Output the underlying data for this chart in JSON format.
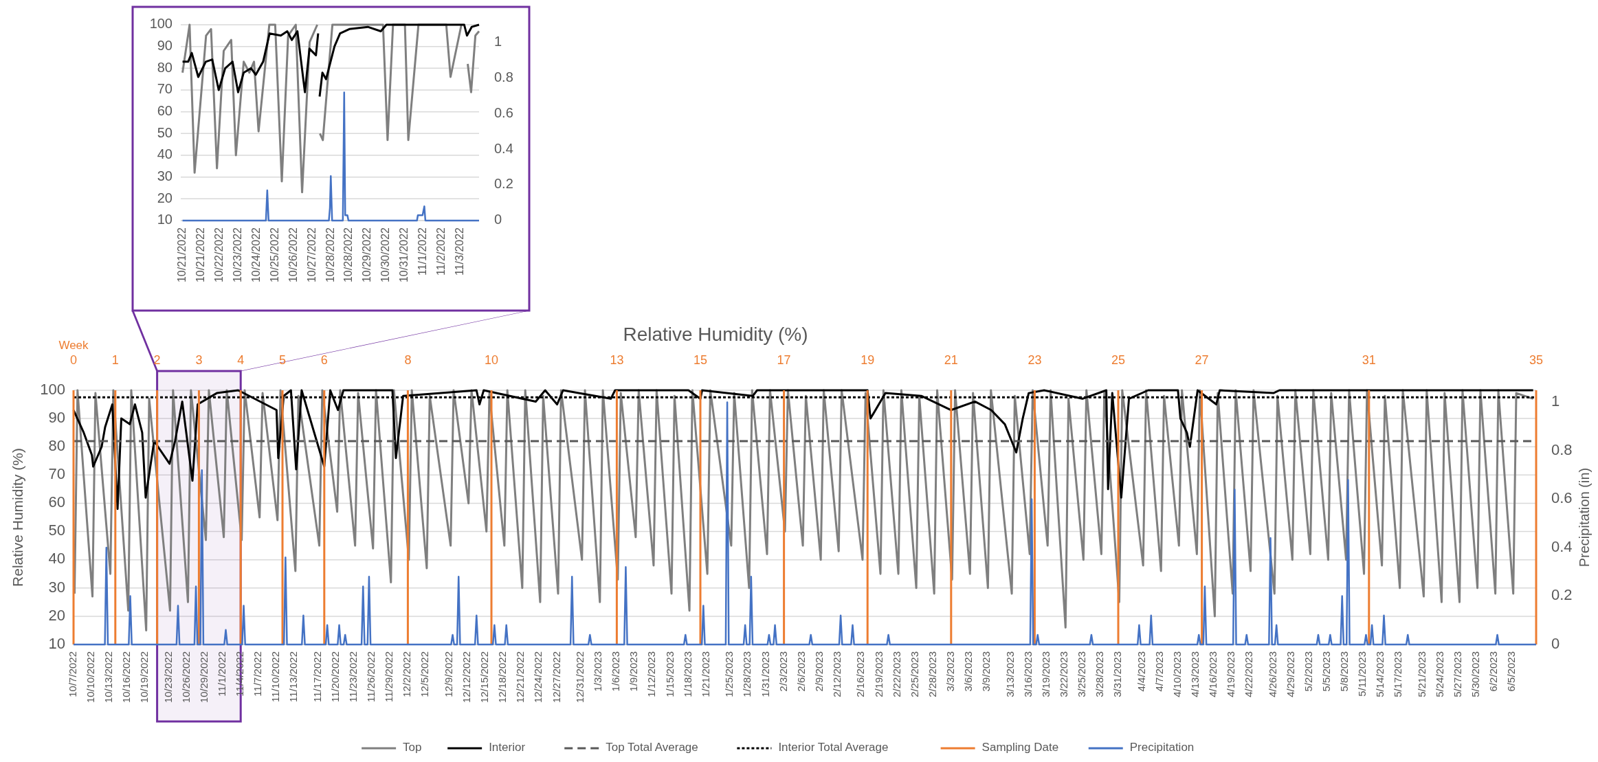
{
  "chart_data": [
    {
      "type": "line",
      "xlim": [
        "2022-10-20T22:00",
        "2022-11-04T00:00"
      ],
      "xticks": [
        {
          "value": "2022-10-21T00:00",
          "label": "10/21/2022"
        },
        {
          "value": "2022-10-21T21:00",
          "label": "10/21/2022"
        },
        {
          "value": "2022-10-22T18:00",
          "label": "10/22/2022"
        },
        {
          "value": "2022-10-23T15:00",
          "label": "10/23/2022"
        },
        {
          "value": "2022-10-24T12:00",
          "label": "10/24/2022"
        },
        {
          "value": "2022-10-25T09:00",
          "label": "10/25/2022"
        },
        {
          "value": "2022-10-26T06:00",
          "label": "10/26/2022"
        },
        {
          "value": "2022-10-27T03:00",
          "label": "10/27/2022"
        },
        {
          "value": "2022-10-28T00:00",
          "label": "10/28/2022"
        },
        {
          "value": "2022-10-28T21:00",
          "label": "10/28/2022"
        },
        {
          "value": "2022-10-29T18:00",
          "label": "10/29/2022"
        },
        {
          "value": "2022-10-30T15:00",
          "label": "10/30/2022"
        },
        {
          "value": "2022-10-31T12:00",
          "label": "10/31/2022"
        },
        {
          "value": "2022-11-01T09:00",
          "label": "11/1/2022"
        },
        {
          "value": "2022-11-02T06:00",
          "label": "11/2/2022"
        },
        {
          "value": "2022-11-03T03:00",
          "label": "11/3/2022"
        }
      ],
      "ylim": [
        10,
        100
      ],
      "yticks": [
        10,
        20,
        30,
        40,
        50,
        60,
        70,
        80,
        90,
        100
      ],
      "y2lim": [
        0,
        1.1
      ],
      "y2ticks": [
        0,
        0.2,
        0.4,
        0.6,
        0.8,
        1
      ],
      "grid": "y",
      "series": [
        {
          "color": "#7f7f7f",
          "x": [
            "2022-10-21T00:00",
            "2022-10-21T08:00",
            "2022-10-21T13:40",
            "2022-10-22T02:40",
            "2022-10-22T08:20",
            "2022-10-22T15:00",
            "2022-10-22T22:40",
            "2022-10-23T07:10",
            "2022-10-23T12:30",
            "2022-10-23T21:20",
            "2022-10-24T03:40",
            "2022-10-24T09:00",
            "2022-10-24T14:10",
            "2022-10-25T02:20",
            "2022-10-25T09:00",
            "2022-10-25T16:30",
            "2022-10-25T23:40",
            "2022-10-26T08:20",
            "2022-10-26T15:30",
            "2022-10-27T00:00",
            "2022-10-27T08:40",
            "2022-10-27T09:20",
            "2022-10-27T11:40",
            "2022-10-27T15:00",
            "2022-10-27T21:40",
            "2022-10-28T01:50",
            "2022-10-30T11:10",
            "2022-10-30T16:20",
            "2022-10-30T22:30",
            "2022-10-31T12:00",
            "2022-10-31T15:50",
            "2022-11-01T03:20",
            "2022-11-02T10:50",
            "2022-11-02T15:40",
            "2022-11-03T04:00",
            "2022-11-03T07:10",
            "2022-11-03T11:10",
            "2022-11-03T15:00",
            "2022-11-03T19:50",
            "2022-11-04T00:00"
          ],
          "values": [
            78,
            100,
            32,
            95,
            98,
            34,
            88,
            93,
            40,
            83,
            78,
            83,
            51,
            100,
            100,
            28,
            95,
            100,
            23,
            92,
            100,
            null,
            50,
            47,
            80,
            100,
            100,
            47,
            100,
            100,
            47,
            100,
            100,
            76,
            100,
            null,
            82,
            69,
            95,
            97
          ]
        },
        {
          "color": "#000000",
          "x": [
            "2022-10-21T00:00",
            "2022-10-21T06:20",
            "2022-10-21T10:30",
            "2022-10-21T17:50",
            "2022-10-22T02:20",
            "2022-10-22T09:40",
            "2022-10-22T17:00",
            "2022-10-23T00:20",
            "2022-10-23T08:40",
            "2022-10-23T15:00",
            "2022-10-23T21:20",
            "2022-10-24T05:40",
            "2022-10-24T11:00",
            "2022-10-24T19:20",
            "2022-10-25T02:40",
            "2022-10-25T15:20",
            "2022-10-25T22:40",
            "2022-10-26T03:50",
            "2022-10-26T10:10",
            "2022-10-26T18:40",
            "2022-10-26T23:50",
            "2022-10-27T07:10",
            "2022-10-27T09:40",
            "2022-10-27T10:30",
            "2022-10-27T11:20",
            "2022-10-27T14:30",
            "2022-10-27T18:40",
            "2022-10-28T04:10",
            "2022-10-28T10:30",
            "2022-10-28T21:00",
            "2022-10-29T18:00",
            "2022-10-30T08:40",
            "2022-10-30T15:00",
            "2022-11-03T07:10",
            "2022-11-03T10:20",
            "2022-11-03T15:40",
            "2022-11-04T00:00"
          ],
          "values": [
            83,
            83,
            87,
            76,
            83,
            84,
            70,
            80,
            83,
            69,
            78,
            80,
            77,
            83,
            96,
            95,
            97,
            93,
            97,
            69,
            89,
            86,
            96,
            null,
            67,
            78,
            75,
            90,
            96,
            98,
            99,
            97,
            100,
            100,
            95,
            99,
            100
          ]
        },
        {
          "color": "#4472c4",
          "axis": "y2",
          "x": [
            "2022-10-21T00:00",
            "2022-10-24T22:30",
            "2022-10-25T00:00",
            "2022-10-25T01:30",
            "2022-10-27T21:50",
            "2022-10-27T23:00",
            "2022-10-28T00:00",
            "2022-10-28T01:30",
            "2022-10-28T13:40",
            "2022-10-28T15:10",
            "2022-10-28T16:20",
            "2022-10-28T18:50",
            "2022-10-28T20:00",
            "2022-11-01T01:40",
            "2022-11-01T02:40",
            "2022-11-01T08:00",
            "2022-11-01T10:00",
            "2022-11-01T11:10",
            "2022-11-04T00:00"
          ],
          "values": [
            0,
            0,
            0.17,
            0,
            0,
            0.07,
            0.25,
            0,
            0,
            0.72,
            0.03,
            0.03,
            0,
            0,
            0.03,
            0.03,
            0.08,
            0,
            0
          ]
        }
      ]
    },
    {
      "type": "line",
      "title": "Relative Humidity (%)",
      "ylabel": "Relative Humidity (%)",
      "y2label": "Precipitation (in)",
      "x2label": "Week",
      "xlim": [
        "2022-10-07",
        "2023-06-09"
      ],
      "xticks": [
        {
          "value": "2022-10-07",
          "label": "10/7/2022"
        },
        {
          "value": "2022-10-10",
          "label": "10/10/2022"
        },
        {
          "value": "2022-10-13",
          "label": "10/13/2022"
        },
        {
          "value": "2022-10-16",
          "label": "10/16/2022"
        },
        {
          "value": "2022-10-19",
          "label": "10/19/2022"
        },
        {
          "value": "2022-10-23",
          "label": "10/23/2022"
        },
        {
          "value": "2022-10-26",
          "label": "10/26/2022"
        },
        {
          "value": "2022-10-29",
          "label": "10/29/2022"
        },
        {
          "value": "2022-11-01",
          "label": "11/1/2022"
        },
        {
          "value": "2022-11-04",
          "label": "11/4/2022"
        },
        {
          "value": "2022-11-07",
          "label": "11/7/2022"
        },
        {
          "value": "2022-11-10",
          "label": "11/10/2022"
        },
        {
          "value": "2022-11-13",
          "label": "11/13/2022"
        },
        {
          "value": "2022-11-17",
          "label": "11/17/2022"
        },
        {
          "value": "2022-11-20",
          "label": "11/20/2022"
        },
        {
          "value": "2022-11-23",
          "label": "11/23/2022"
        },
        {
          "value": "2022-11-26",
          "label": "11/26/2022"
        },
        {
          "value": "2022-11-29",
          "label": "11/29/2022"
        },
        {
          "value": "2022-12-02",
          "label": "12/2/2022"
        },
        {
          "value": "2022-12-05",
          "label": "12/5/2022"
        },
        {
          "value": "2022-12-09",
          "label": "12/9/2022"
        },
        {
          "value": "2022-12-12",
          "label": "12/12/2022"
        },
        {
          "value": "2022-12-15",
          "label": "12/15/2022"
        },
        {
          "value": "2022-12-18",
          "label": "12/18/2022"
        },
        {
          "value": "2022-12-21",
          "label": "12/21/2022"
        },
        {
          "value": "2022-12-24",
          "label": "12/24/2022"
        },
        {
          "value": "2022-12-27",
          "label": "12/27/2022"
        },
        {
          "value": "2022-12-31",
          "label": "12/31/2022"
        },
        {
          "value": "2023-01-03",
          "label": "1/3/2023"
        },
        {
          "value": "2023-01-06",
          "label": "1/6/2023"
        },
        {
          "value": "2023-01-09",
          "label": "1/9/2023"
        },
        {
          "value": "2023-01-12",
          "label": "1/12/2023"
        },
        {
          "value": "2023-01-15",
          "label": "1/15/2023"
        },
        {
          "value": "2023-01-18",
          "label": "1/18/2023"
        },
        {
          "value": "2023-01-21",
          "label": "1/21/2023"
        },
        {
          "value": "2023-01-25",
          "label": "1/25/2023"
        },
        {
          "value": "2023-01-28",
          "label": "1/28/2023"
        },
        {
          "value": "2023-01-31",
          "label": "1/31/2023"
        },
        {
          "value": "2023-02-03",
          "label": "2/3/2023"
        },
        {
          "value": "2023-02-06",
          "label": "2/6/2023"
        },
        {
          "value": "2023-02-09",
          "label": "2/9/2023"
        },
        {
          "value": "2023-02-12",
          "label": "2/12/2023"
        },
        {
          "value": "2023-02-16",
          "label": "2/16/2023"
        },
        {
          "value": "2023-02-19",
          "label": "2/19/2023"
        },
        {
          "value": "2023-02-22",
          "label": "2/22/2023"
        },
        {
          "value": "2023-02-25",
          "label": "2/25/2023"
        },
        {
          "value": "2023-02-28",
          "label": "2/28/2023"
        },
        {
          "value": "2023-03-03",
          "label": "3/3/2023"
        },
        {
          "value": "2023-03-06",
          "label": "3/6/2023"
        },
        {
          "value": "2023-03-09",
          "label": "3/9/2023"
        },
        {
          "value": "2023-03-13",
          "label": "3/13/2023"
        },
        {
          "value": "2023-03-16",
          "label": "3/16/2023"
        },
        {
          "value": "2023-03-19",
          "label": "3/19/2023"
        },
        {
          "value": "2023-03-22",
          "label": "3/22/2023"
        },
        {
          "value": "2023-03-25",
          "label": "3/25/2023"
        },
        {
          "value": "2023-03-28",
          "label": "3/28/2023"
        },
        {
          "value": "2023-03-31",
          "label": "3/31/2023"
        },
        {
          "value": "2023-04-04",
          "label": "4/4/2023"
        },
        {
          "value": "2023-04-07",
          "label": "4/7/2023"
        },
        {
          "value": "2023-04-10",
          "label": "4/10/2023"
        },
        {
          "value": "2023-04-13",
          "label": "4/13/2023"
        },
        {
          "value": "2023-04-16",
          "label": "4/16/2023"
        },
        {
          "value": "2023-04-19",
          "label": "4/19/2023"
        },
        {
          "value": "2023-04-22",
          "label": "4/22/2023"
        },
        {
          "value": "2023-04-26",
          "label": "4/26/2023"
        },
        {
          "value": "2023-04-29",
          "label": "4/29/2023"
        },
        {
          "value": "2023-05-02",
          "label": "5/2/2023"
        },
        {
          "value": "2023-05-05",
          "label": "5/5/2023"
        },
        {
          "value": "2023-05-08",
          "label": "5/8/2023"
        },
        {
          "value": "2023-05-11",
          "label": "5/11/2023"
        },
        {
          "value": "2023-05-14",
          "label": "5/14/2023"
        },
        {
          "value": "2023-05-17",
          "label": "5/17/2023"
        },
        {
          "value": "2023-05-21",
          "label": "5/21/2023"
        },
        {
          "value": "2023-05-24",
          "label": "5/24/2023"
        },
        {
          "value": "2023-05-27",
          "label": "5/27/2023"
        },
        {
          "value": "2023-05-30",
          "label": "5/30/2023"
        },
        {
          "value": "2023-06-02",
          "label": "6/2/2023"
        },
        {
          "value": "2023-06-05",
          "label": "6/5/2023"
        }
      ],
      "x2lim": [
        "2022-10-07",
        "2023-06-09"
      ],
      "x2ticks": [
        {
          "value": "2022-10-07",
          "label": "0"
        },
        {
          "value": "2022-10-14",
          "label": "1"
        },
        {
          "value": "2022-10-21",
          "label": "2"
        },
        {
          "value": "2022-10-28",
          "label": "3"
        },
        {
          "value": "2022-11-04",
          "label": "4"
        },
        {
          "value": "2022-11-11",
          "label": "5"
        },
        {
          "value": "2022-11-18",
          "label": "6"
        },
        {
          "value": "2022-12-02",
          "label": "8"
        },
        {
          "value": "2022-12-16",
          "label": "10"
        },
        {
          "value": "2023-01-06",
          "label": "13"
        },
        {
          "value": "2023-01-20",
          "label": "15"
        },
        {
          "value": "2023-02-03",
          "label": "17"
        },
        {
          "value": "2023-02-17",
          "label": "19"
        },
        {
          "value": "2023-03-03",
          "label": "21"
        },
        {
          "value": "2023-03-17",
          "label": "23"
        },
        {
          "value": "2023-03-31",
          "label": "25"
        },
        {
          "value": "2023-04-14",
          "label": "27"
        },
        {
          "value": "2023-05-12",
          "label": "31"
        },
        {
          "value": "2023-06-09",
          "label": "35"
        }
      ],
      "ylim": [
        10,
        100
      ],
      "yticks": [
        10,
        20,
        30,
        40,
        50,
        60,
        70,
        80,
        90,
        100
      ],
      "y2lim": [
        0,
        1.05
      ],
      "y2ticks": [
        0,
        0.2,
        0.4,
        0.6,
        0.8,
        1
      ],
      "grid": "y",
      "legend": "bottom",
      "bands": [
        {
          "axis": "x",
          "from": "2022-10-21",
          "to": "2022-11-04",
          "color": "#7030a0"
        }
      ],
      "series": [
        {
          "name": "Top",
          "color": "#7f7f7f",
          "x": [
            "2022-10-07T04:00",
            "2022-10-07T16:00",
            "2022-10-10T04:00",
            "2022-10-10T16:00",
            "2022-10-13T04:00",
            "2022-10-13T16:00",
            "2022-10-16T04:00",
            "2022-10-16T16:00",
            "2022-10-19T04:00",
            "2022-10-19T16:00",
            "2022-10-23T04:00",
            "2022-10-23T16:00",
            "2022-10-26T04:00",
            "2022-10-26T16:00",
            "2022-10-29T04:00",
            "2022-10-29T16:00",
            "2022-11-01T04:00",
            "2022-11-01T16:00",
            "2022-11-04T04:00",
            "2022-11-04T16:00",
            "2022-11-07T04:00",
            "2022-11-07T16:00",
            "2022-11-10T04:00",
            "2022-11-10T16:00",
            "2022-11-13T04:00",
            "2022-11-13T16:00",
            "2022-11-17T04:00",
            "2022-11-17T16:00",
            "2022-11-20T04:00",
            "2022-11-20T16:00",
            "2022-11-23T04:00",
            "2022-11-23T16:00",
            "2022-11-26T04:00",
            "2022-11-26T16:00",
            "2022-11-29T04:00",
            "2022-11-29T16:00",
            "2022-12-02T04:00",
            "2022-12-02T16:00",
            "2022-12-05T04:00",
            "2022-12-05T16:00",
            "2022-12-09T04:00",
            "2022-12-09T16:00",
            "2022-12-12T04:00",
            "2022-12-12T16:00",
            "2022-12-15T04:00",
            "2022-12-15T16:00",
            "2022-12-18T04:00",
            "2022-12-18T16:00",
            "2022-12-21T04:00",
            "2022-12-21T16:00",
            "2022-12-24T04:00",
            "2022-12-24T16:00",
            "2022-12-27T04:00",
            "2022-12-27T16:00",
            "2022-12-31T04:00",
            "2022-12-31T16:00",
            "2023-01-03T04:00",
            "2023-01-03T16:00",
            "2023-01-06T04:00",
            "2023-01-06T16:00",
            "2023-01-09T04:00",
            "2023-01-09T16:00",
            "2023-01-12T04:00",
            "2023-01-12T16:00",
            "2023-01-15T04:00",
            "2023-01-15T16:00",
            "2023-01-18T04:00",
            "2023-01-18T16:00",
            "2023-01-21T04:00",
            "2023-01-21T16:00",
            "2023-01-25T04:00",
            "2023-01-25T16:00",
            "2023-01-28T04:00",
            "2023-01-28T16:00",
            "2023-01-31T04:00",
            "2023-01-31T16:00",
            "2023-02-03T04:00",
            "2023-02-03T16:00",
            "2023-02-06T04:00",
            "2023-02-06T16:00",
            "2023-02-09T04:00",
            "2023-02-09T16:00",
            "2023-02-12T04:00",
            "2023-02-12T16:00",
            "2023-02-16T04:00",
            "2023-02-16T16:00",
            "2023-02-19T04:00",
            "2023-02-19T16:00",
            "2023-02-22T04:00",
            "2023-02-22T16:00",
            "2023-02-25T04:00",
            "2023-02-25T16:00",
            "2023-02-28T04:00",
            "2023-02-28T16:00",
            "2023-03-03T04:00",
            "2023-03-03T16:00",
            "2023-03-06T04:00",
            "2023-03-06T16:00",
            "2023-03-09T04:00",
            "2023-03-09T16:00",
            "2023-03-13T04:00",
            "2023-03-13T16:00",
            "2023-03-16T04:00",
            "2023-03-16T16:00",
            "2023-03-19T04:00",
            "2023-03-19T16:00",
            "2023-03-22T04:00",
            "2023-03-22T16:00",
            "2023-03-25T04:00",
            "2023-03-25T16:00",
            "2023-03-28T04:00",
            "2023-03-28T16:00",
            "2023-03-31T04:00",
            "2023-03-31T16:00",
            "2023-04-04T04:00",
            "2023-04-04T16:00",
            "2023-04-07T04:00",
            "2023-04-07T16:00",
            "2023-04-10T04:00",
            "2023-04-10T16:00",
            "2023-04-13T04:00",
            "2023-04-13T16:00",
            "2023-04-16T04:00",
            "2023-04-16T16:00",
            "2023-04-19T04:00",
            "2023-04-19T16:00",
            "2023-04-22T04:00",
            "2023-04-22T16:00",
            "2023-04-26T04:00",
            "2023-04-26T16:00",
            "2023-04-29T04:00",
            "2023-04-29T16:00",
            "2023-05-02T04:00",
            "2023-05-02T16:00",
            "2023-05-05T04:00",
            "2023-05-05T16:00",
            "2023-05-08T04:00",
            "2023-05-08T16:00",
            "2023-05-11T04:00",
            "2023-05-11T16:00",
            "2023-05-14T04:00",
            "2023-05-14T16:00",
            "2023-05-17T04:00",
            "2023-05-17T16:00",
            "2023-05-21T04:00",
            "2023-05-21T16:00",
            "2023-05-24T04:00",
            "2023-05-24T16:00",
            "2023-05-27T04:00",
            "2023-05-27T16:00",
            "2023-05-30T04:00",
            "2023-05-30T16:00",
            "2023-06-02T04:00",
            "2023-06-02T16:00",
            "2023-06-05T04:00",
            "2023-06-05T16:00",
            "2023-06-08T12:00"
          ],
          "values": [
            28,
            100,
            27,
            99,
            35,
            100,
            22,
            100,
            15,
            97,
            22,
            100,
            25,
            100,
            47,
            100,
            48,
            100,
            47,
            100,
            55,
            99,
            54,
            100,
            36,
            98,
            45,
            100,
            57,
            100,
            45,
            99,
            44,
            100,
            32,
            100,
            40,
            100,
            37,
            98,
            45,
            100,
            60,
            100,
            50,
            99,
            45,
            100,
            30,
            100,
            25,
            98,
            28,
            100,
            40,
            100,
            25,
            100,
            33,
            99,
            48,
            100,
            38,
            100,
            28,
            98,
            22,
            100,
            35,
            100,
            45,
            99,
            30,
            100,
            42,
            100,
            50,
            100,
            45,
            98,
            40,
            100,
            43,
            100,
            40,
            99,
            35,
            100,
            35,
            100,
            30,
            98,
            28,
            100,
            33,
            100,
            35,
            99,
            30,
            100,
            28,
            98,
            42,
            100,
            45,
            100,
            16,
            97,
            40,
            100,
            42,
            99,
            25,
            100,
            38,
            100,
            36,
            98,
            45,
            100,
            42,
            100,
            20,
            99,
            28,
            100,
            36,
            100,
            28,
            98,
            40,
            100,
            42,
            100,
            40,
            99,
            40,
            100,
            35,
            100,
            38,
            98,
            30,
            100,
            27,
            100,
            25,
            99,
            25,
            100,
            30,
            100,
            28,
            100,
            28,
            99,
            97
          ]
        },
        {
          "name": "Interior",
          "color": "#000000",
          "x": [
            "2022-10-07T00:00",
            "2022-10-08T17:00",
            "2022-10-10T02:00",
            "2022-10-10T07:00",
            "2022-10-11T17:00",
            "2022-10-12T07:00",
            "2022-10-13T12:00",
            "2022-10-14T09:00",
            "2022-10-15T00:00",
            "2022-10-16T10:00",
            "2022-10-17T07:00",
            "2022-10-18T12:00",
            "2022-10-19T02:00",
            "2022-10-20T12:00",
            "2022-10-23T02:00",
            "2022-10-24T00:00",
            "2022-10-25T05:00",
            "2022-10-26T22:00",
            "2022-10-27T19:00",
            "2022-10-31T00:00",
            "2022-11-03T14:00",
            "2022-11-10T00:00",
            "2022-11-10T07:00",
            "2022-11-11T05:00",
            "2022-11-12T10:00",
            "2022-11-13T07:00",
            "2022-11-14T05:00",
            "2022-11-18T00:00",
            "2022-11-19T00:00",
            "2022-11-20T07:00",
            "2022-11-21T05:00",
            "2022-11-29T10:00",
            "2022-11-30T00:00",
            "2022-12-01T05:00",
            "2022-12-13T12:00",
            "2022-12-14T00:00",
            "2022-12-14T17:00",
            "2022-12-23T10:00",
            "2022-12-25T00:00",
            "2022-12-27T00:00",
            "2022-12-28T00:00",
            "2023-01-05T00:00",
            "2023-01-05T17:00",
            "2023-01-18T00:00",
            "2023-01-20T00:00",
            "2023-01-20T07:00",
            "2023-01-28T19:00",
            "2023-01-29T12:00",
            "2023-02-17T00:00",
            "2023-02-17T12:00",
            "2023-02-20T00:00",
            "2023-02-26T00:00",
            "2023-03-03T00:00",
            "2023-03-07T00:00",
            "2023-03-09T17:00",
            "2023-03-12T00:00",
            "2023-03-13T22:00",
            "2023-03-15T00:00",
            "2023-03-16T00:00",
            "2023-03-18T14:00",
            "2023-03-25T00:00",
            "2023-03-29T00:00",
            "2023-03-29T07:00",
            "2023-03-30T00:00",
            "2023-03-31T12:00",
            "2023-04-01T19:00",
            "2023-04-05T00:00",
            "2023-04-10T00:00",
            "2023-04-10T10:00",
            "2023-04-11T12:00",
            "2023-04-12T00:00",
            "2023-04-13T07:00",
            "2023-04-16T10:00",
            "2023-04-17T00:00",
            "2023-04-26T00:00",
            "2023-04-27T00:00",
            "2023-06-08T12:00"
          ],
          "values": [
            93,
            85,
            77,
            73,
            80,
            87,
            95,
            58,
            90,
            88,
            95,
            85,
            62,
            82,
            74,
            82,
            96,
            68,
            95,
            99,
            100,
            93,
            76,
            98,
            100,
            72,
            100,
            73,
            100,
            93,
            100,
            100,
            76,
            98,
            100,
            95,
            100,
            96,
            100,
            95,
            100,
            97,
            100,
            100,
            97,
            100,
            98,
            100,
            100,
            90,
            99,
            98,
            93,
            96,
            93,
            88,
            78,
            90,
            99,
            100,
            97,
            100,
            65,
            99,
            62,
            97,
            100,
            100,
            90,
            85,
            80,
            100,
            95,
            100,
            99,
            100,
            100
          ]
        },
        {
          "name": "Top Total Average",
          "color": "#595959",
          "line_style": "dashed",
          "x": [
            "2022-10-07",
            "2023-06-09"
          ],
          "values": [
            82,
            82
          ]
        },
        {
          "name": "Interior Total Average",
          "color": "#000000",
          "line_style": "dotted",
          "x": [
            "2022-10-07",
            "2023-06-09"
          ],
          "values": [
            97.5,
            97.5
          ]
        },
        {
          "name": "Sampling Date",
          "color": "#ed7d31",
          "axis": "x2",
          "x": [
            "2022-10-07",
            "2022-10-07",
            null,
            "2022-10-14",
            "2022-10-14",
            null,
            "2022-10-21",
            "2022-10-21",
            null,
            "2022-10-28",
            "2022-10-28",
            null,
            "2022-11-04",
            "2022-11-04",
            null,
            "2022-11-11",
            "2022-11-11",
            null,
            "2022-11-18",
            "2022-11-18",
            null,
            "2022-12-02",
            "2022-12-02",
            null,
            "2022-12-16",
            "2022-12-16",
            null,
            "2023-01-06",
            "2023-01-06",
            null,
            "2023-01-20",
            "2023-01-20",
            null,
            "2023-02-03",
            "2023-02-03",
            null,
            "2023-02-17",
            "2023-02-17",
            null,
            "2023-03-03",
            "2023-03-03",
            null,
            "2023-03-17",
            "2023-03-17",
            null,
            "2023-03-31",
            "2023-03-31",
            null,
            "2023-04-14",
            "2023-04-14",
            null,
            "2023-05-12",
            "2023-05-12",
            null,
            "2023-06-09",
            "2023-06-09"
          ],
          "values": [
            10,
            100,
            null,
            10,
            100,
            null,
            10,
            100,
            null,
            10,
            100,
            null,
            10,
            100,
            null,
            10,
            100,
            null,
            10,
            100,
            null,
            10,
            100,
            null,
            10,
            100,
            null,
            10,
            100,
            null,
            10,
            100,
            null,
            10,
            100,
            null,
            10,
            100,
            null,
            10,
            100,
            null,
            10,
            100,
            null,
            10,
            100,
            null,
            10,
            100,
            null,
            10,
            100,
            null,
            10,
            100
          ]
        },
        {
          "name": "Precipitation",
          "color": "#4472c4",
          "axis": "y2",
          "x": [
            "2022-10-07T00:00",
            "2022-10-12T06:00",
            "2022-10-12T12:00",
            "2022-10-12T18:00",
            "2022-10-16T06:00",
            "2022-10-16T12:00",
            "2022-10-16T18:00",
            "2022-10-24T06:00",
            "2022-10-24T12:00",
            "2022-10-24T18:00",
            "2022-10-27T06:00",
            "2022-10-27T12:00",
            "2022-10-27T18:00",
            "2022-10-28T06:00",
            "2022-10-28T12:00",
            "2022-10-28T18:00",
            "2022-11-01T06:00",
            "2022-11-01T12:00",
            "2022-11-01T18:00",
            "2022-11-04T06:00",
            "2022-11-04T12:00",
            "2022-11-04T18:00",
            "2022-11-11T06:00",
            "2022-11-11T12:00",
            "2022-11-11T18:00",
            "2022-11-14T06:00",
            "2022-11-14T12:00",
            "2022-11-14T18:00",
            "2022-11-18T06:00",
            "2022-11-18T12:00",
            "2022-11-18T18:00",
            "2022-11-20T06:00",
            "2022-11-20T12:00",
            "2022-11-20T18:00",
            "2022-11-21T06:00",
            "2022-11-21T12:00",
            "2022-11-21T18:00",
            "2022-11-24T06:00",
            "2022-11-24T12:00",
            "2022-11-24T18:00",
            "2022-11-25T06:00",
            "2022-11-25T12:00",
            "2022-11-25T18:00",
            "2022-12-09T06:00",
            "2022-12-09T12:00",
            "2022-12-09T18:00",
            "2022-12-10T06:00",
            "2022-12-10T12:00",
            "2022-12-10T18:00",
            "2022-12-13T06:00",
            "2022-12-13T12:00",
            "2022-12-13T18:00",
            "2022-12-16T06:00",
            "2022-12-16T12:00",
            "2022-12-16T18:00",
            "2022-12-18T06:00",
            "2022-12-18T12:00",
            "2022-12-18T18:00",
            "2022-12-29T06:00",
            "2022-12-29T12:00",
            "2022-12-29T18:00",
            "2023-01-01T06:00",
            "2023-01-01T12:00",
            "2023-01-01T18:00",
            "2023-01-07T06:00",
            "2023-01-07T12:00",
            "2023-01-07T18:00",
            "2023-01-17T06:00",
            "2023-01-17T12:00",
            "2023-01-17T18:00",
            "2023-01-20T06:00",
            "2023-01-20T12:00",
            "2023-01-20T18:00",
            "2023-01-24T06:00",
            "2023-01-24T12:00",
            "2023-01-24T18:00",
            "2023-01-27T06:00",
            "2023-01-27T12:00",
            "2023-01-27T18:00",
            "2023-01-28T06:00",
            "2023-01-28T12:00",
            "2023-01-28T18:00",
            "2023-01-31T06:00",
            "2023-01-31T12:00",
            "2023-01-31T18:00",
            "2023-02-01T06:00",
            "2023-02-01T12:00",
            "2023-02-01T18:00",
            "2023-02-07T06:00",
            "2023-02-07T12:00",
            "2023-02-07T18:00",
            "2023-02-12T06:00",
            "2023-02-12T12:00",
            "2023-02-12T18:00",
            "2023-02-14T06:00",
            "2023-02-14T12:00",
            "2023-02-14T18:00",
            "2023-02-20T06:00",
            "2023-02-20T12:00",
            "2023-02-20T18:00",
            "2023-03-16T06:00",
            "2023-03-16T12:00",
            "2023-03-16T18:00",
            "2023-03-17T06:00",
            "2023-03-17T12:00",
            "2023-03-17T18:00",
            "2023-03-26T06:00",
            "2023-03-26T12:00",
            "2023-03-26T18:00",
            "2023-04-03T06:00",
            "2023-04-03T12:00",
            "2023-04-03T18:00",
            "2023-04-05T06:00",
            "2023-04-05T12:00",
            "2023-04-05T18:00",
            "2023-04-13T06:00",
            "2023-04-13T12:00",
            "2023-04-13T18:00",
            "2023-04-14T06:00",
            "2023-04-14T12:00",
            "2023-04-14T18:00",
            "2023-04-19T06:00",
            "2023-04-19T12:00",
            "2023-04-19T18:00",
            "2023-04-21T06:00",
            "2023-04-21T12:00",
            "2023-04-21T18:00",
            "2023-04-25T06:00",
            "2023-04-25T12:00",
            "2023-04-25T18:00",
            "2023-04-26T06:00",
            "2023-04-26T12:00",
            "2023-04-26T18:00",
            "2023-05-03T06:00",
            "2023-05-03T12:00",
            "2023-05-03T18:00",
            "2023-05-05T06:00",
            "2023-05-05T12:00",
            "2023-05-05T18:00",
            "2023-05-07T06:00",
            "2023-05-07T12:00",
            "2023-05-07T18:00",
            "2023-05-08T06:00",
            "2023-05-08T12:00",
            "2023-05-08T18:00",
            "2023-05-11T06:00",
            "2023-05-11T12:00",
            "2023-05-11T18:00",
            "2023-05-12T06:00",
            "2023-05-12T12:00",
            "2023-05-12T18:00",
            "2023-05-14T06:00",
            "2023-05-14T12:00",
            "2023-05-14T18:00",
            "2023-05-18T06:00",
            "2023-05-18T12:00",
            "2023-05-18T18:00",
            "2023-06-02T06:00",
            "2023-06-02T12:00",
            "2023-06-02T18:00",
            "2023-06-09T00:00"
          ],
          "values": [
            0,
            0,
            0.4,
            0,
            0,
            0.2,
            0,
            0,
            0.16,
            0,
            0,
            0.24,
            0,
            0,
            0.72,
            0,
            0,
            0.06,
            0,
            0,
            0.16,
            0,
            0,
            0.36,
            0,
            0,
            0.12,
            0,
            0,
            0.08,
            0,
            0,
            0.08,
            0,
            0,
            0.04,
            0,
            0,
            0.24,
            0,
            0,
            0.28,
            0,
            0,
            0.04,
            0,
            0,
            0.28,
            0,
            0,
            0.12,
            0,
            0,
            0.08,
            0,
            0,
            0.08,
            0,
            0,
            0.28,
            0,
            0,
            0.04,
            0,
            0,
            0.32,
            0,
            0,
            0.04,
            0,
            0,
            0.16,
            0,
            0,
            1,
            0,
            0,
            0.08,
            0,
            0,
            0.28,
            0,
            0,
            0.04,
            0,
            0,
            0.08,
            0,
            0,
            0.04,
            0,
            0,
            0.12,
            0,
            0,
            0.08,
            0,
            0,
            0.04,
            0,
            0,
            0.6,
            0,
            0,
            0.04,
            0,
            0,
            0.04,
            0,
            0,
            0.08,
            0,
            0,
            0.12,
            0,
            0,
            0.04,
            0,
            0,
            0.24,
            0,
            0,
            0.64,
            0,
            0,
            0.04,
            0,
            0,
            0.44,
            0,
            0,
            0.08,
            0,
            0,
            0.04,
            0,
            0,
            0.04,
            0,
            0,
            0.2,
            0,
            0,
            0.68,
            0,
            0,
            0.04,
            0,
            0,
            0.08,
            0,
            0,
            0.12,
            0,
            0,
            0.04,
            0,
            0,
            0.04,
            0,
            0
          ]
        }
      ]
    }
  ]
}
